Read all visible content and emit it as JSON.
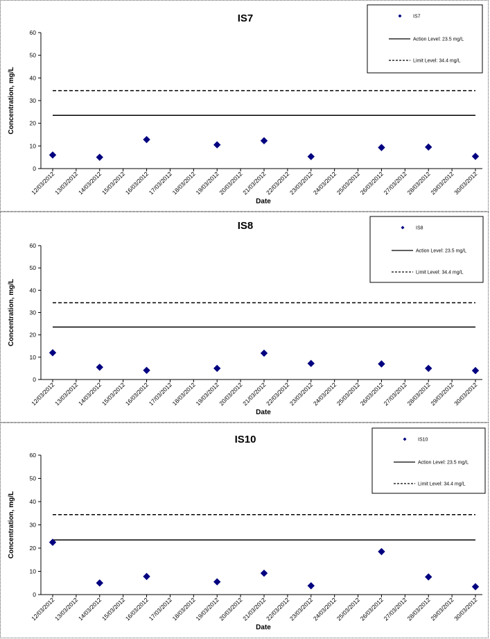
{
  "chart_data": [
    {
      "type": "scatter",
      "title": "IS7",
      "xlabel": "Date",
      "ylabel": "Concentration, mg/L",
      "ylim": [
        0,
        60
      ],
      "yticks": [
        0,
        10,
        20,
        30,
        40,
        50,
        60
      ],
      "categories": [
        "12/03/2012",
        "13/03/2012",
        "14/03/2012",
        "15/03/2012",
        "16/03/2012",
        "17/03/2012",
        "18/03/2012",
        "19/03/2012",
        "20/03/2012",
        "21/03/2012",
        "22/03/2012",
        "23/03/2012",
        "24/03/2012",
        "25/03/2012",
        "26/03/2012",
        "27/03/2012",
        "28/03/2012",
        "29/03/2012",
        "30/03/2012"
      ],
      "series": [
        {
          "name": "IS7",
          "color": "#000080",
          "points": [
            [
              "12/03/2012",
              6.0
            ],
            [
              "14/03/2012",
              5.0
            ],
            [
              "16/03/2012",
              12.8
            ],
            [
              "19/03/2012",
              10.5
            ],
            [
              "21/03/2012",
              12.3
            ],
            [
              "23/03/2012",
              5.3
            ],
            [
              "26/03/2012",
              9.3
            ],
            [
              "28/03/2012",
              9.5
            ],
            [
              "30/03/2012",
              5.4
            ]
          ]
        }
      ],
      "levels": [
        {
          "name": "Action Level: 23.5 mg/L",
          "value": 23.5,
          "style": "solid"
        },
        {
          "name": "Limit Level: 34.4 mg/L",
          "value": 34.4,
          "style": "dashed"
        }
      ],
      "legend_position": "top-right",
      "grid": false
    },
    {
      "type": "scatter",
      "title": "IS8",
      "xlabel": "Date",
      "ylabel": "Concentration, mg/L",
      "ylim": [
        0,
        60
      ],
      "yticks": [
        0,
        10,
        20,
        30,
        40,
        50,
        60
      ],
      "categories": [
        "12/03/2012",
        "13/03/2012",
        "14/03/2012",
        "15/03/2012",
        "16/03/2012",
        "17/03/2012",
        "18/03/2012",
        "19/03/2012",
        "20/03/2012",
        "21/03/2012",
        "22/03/2012",
        "23/03/2012",
        "24/03/2012",
        "25/03/2012",
        "26/03/2012",
        "27/03/2012",
        "28/03/2012",
        "29/03/2012",
        "30/03/2012"
      ],
      "series": [
        {
          "name": "IS8",
          "color": "#000080",
          "points": [
            [
              "12/03/2012",
              12.0
            ],
            [
              "14/03/2012",
              5.5
            ],
            [
              "16/03/2012",
              4.1
            ],
            [
              "19/03/2012",
              5.0
            ],
            [
              "21/03/2012",
              11.8
            ],
            [
              "23/03/2012",
              7.2
            ],
            [
              "26/03/2012",
              7.0
            ],
            [
              "28/03/2012",
              5.0
            ],
            [
              "30/03/2012",
              4.0
            ]
          ]
        }
      ],
      "levels": [
        {
          "name": "Action Level: 23.5 mg/L",
          "value": 23.5,
          "style": "solid"
        },
        {
          "name": "Limit Level: 34.4 mg/L",
          "value": 34.4,
          "style": "dashed"
        }
      ],
      "legend_position": "top-right",
      "grid": false
    },
    {
      "type": "scatter",
      "title": "IS10",
      "xlabel": "Date",
      "ylabel": "Concentration, mg/L",
      "ylim": [
        0,
        60
      ],
      "yticks": [
        0,
        10,
        20,
        30,
        40,
        50,
        60
      ],
      "categories": [
        "12/03/2012",
        "13/03/2012",
        "14/03/2012",
        "15/03/2012",
        "16/03/2012",
        "17/03/2012",
        "18/03/2012",
        "19/03/2012",
        "20/03/2012",
        "21/03/2012",
        "22/03/2012",
        "23/03/2012",
        "24/03/2012",
        "25/03/2012",
        "26/03/2012",
        "27/03/2012",
        "28/03/2012",
        "29/03/2012",
        "30/03/2012"
      ],
      "series": [
        {
          "name": "IS10",
          "color": "#000080",
          "points": [
            [
              "12/03/2012",
              22.5
            ],
            [
              "14/03/2012",
              5.0
            ],
            [
              "16/03/2012",
              7.8
            ],
            [
              "19/03/2012",
              5.5
            ],
            [
              "21/03/2012",
              9.2
            ],
            [
              "23/03/2012",
              3.8
            ],
            [
              "26/03/2012",
              18.5
            ],
            [
              "28/03/2012",
              7.6
            ],
            [
              "30/03/2012",
              3.4
            ]
          ]
        }
      ],
      "levels": [
        {
          "name": "Action Level: 23.5 mg/L",
          "value": 23.5,
          "style": "solid"
        },
        {
          "name": "Limit Level: 34.4 mg/L",
          "value": 34.4,
          "style": "dashed"
        }
      ],
      "legend_position": "top-right",
      "grid": false
    }
  ]
}
